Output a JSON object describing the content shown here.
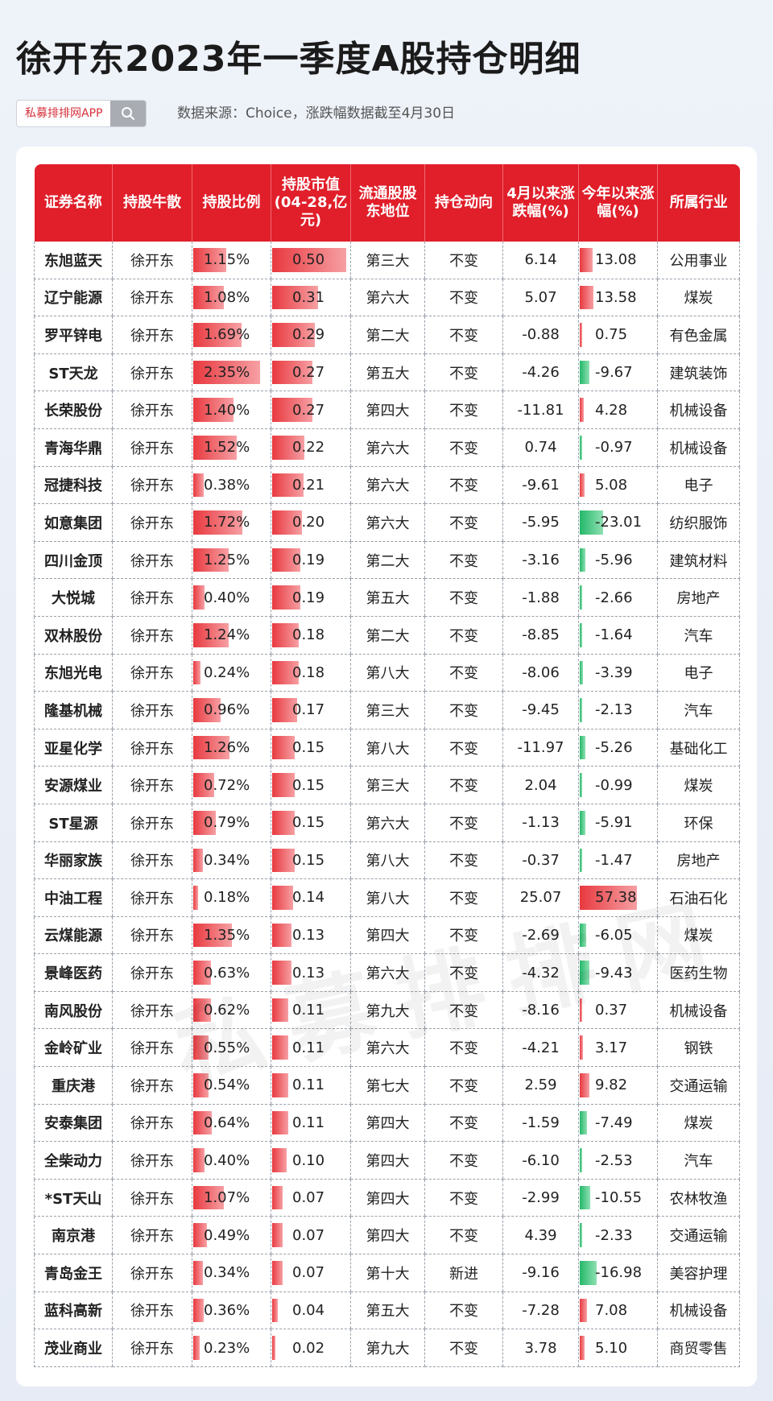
{
  "title": "徐开东2023年一季度A股持仓明细",
  "brand": {
    "name": "私募排排网APP",
    "search_icon": "search-icon"
  },
  "source_note": "数据来源：Choice，涨跌幅数据截至4月30日",
  "watermark": "私募排排网",
  "colors": {
    "header_red": "#e01f2a",
    "bar_red": "#e8393f",
    "bar_green": "#24b86a"
  },
  "table": {
    "headers": [
      "证券名称",
      "持股牛散",
      "持股比例",
      "持股市值(04-28,亿元)",
      "流通股股东地位",
      "持仓动向",
      "4月以来涨跌幅(%)",
      "今年以来涨幅(%)",
      "所属行业"
    ],
    "rows": [
      {
        "name": "东旭蓝天",
        "holder": "徐开东",
        "ratio": "1.15%",
        "ratio_v": 1.15,
        "mv": "0.50",
        "mv_v": 0.5,
        "rank": "第三大",
        "action": "不变",
        "apr": "6.14",
        "ytd": "13.08",
        "ytd_v": 13.08,
        "industry": "公用事业"
      },
      {
        "name": "辽宁能源",
        "holder": "徐开东",
        "ratio": "1.08%",
        "ratio_v": 1.08,
        "mv": "0.31",
        "mv_v": 0.31,
        "rank": "第六大",
        "action": "不变",
        "apr": "5.07",
        "ytd": "13.58",
        "ytd_v": 13.58,
        "industry": "煤炭"
      },
      {
        "name": "罗平锌电",
        "holder": "徐开东",
        "ratio": "1.69%",
        "ratio_v": 1.69,
        "mv": "0.29",
        "mv_v": 0.29,
        "rank": "第二大",
        "action": "不变",
        "apr": "-0.88",
        "ytd": "0.75",
        "ytd_v": 0.75,
        "industry": "有色金属"
      },
      {
        "name": "ST天龙",
        "holder": "徐开东",
        "ratio": "2.35%",
        "ratio_v": 2.35,
        "mv": "0.27",
        "mv_v": 0.27,
        "rank": "第五大",
        "action": "不变",
        "apr": "-4.26",
        "ytd": "-9.67",
        "ytd_v": -9.67,
        "industry": "建筑装饰"
      },
      {
        "name": "长荣股份",
        "holder": "徐开东",
        "ratio": "1.40%",
        "ratio_v": 1.4,
        "mv": "0.27",
        "mv_v": 0.27,
        "rank": "第四大",
        "action": "不变",
        "apr": "-11.81",
        "ytd": "4.28",
        "ytd_v": 4.28,
        "industry": "机械设备"
      },
      {
        "name": "青海华鼎",
        "holder": "徐开东",
        "ratio": "1.52%",
        "ratio_v": 1.52,
        "mv": "0.22",
        "mv_v": 0.22,
        "rank": "第六大",
        "action": "不变",
        "apr": "0.74",
        "ytd": "-0.97",
        "ytd_v": -0.97,
        "industry": "机械设备"
      },
      {
        "name": "冠捷科技",
        "holder": "徐开东",
        "ratio": "0.38%",
        "ratio_v": 0.38,
        "mv": "0.21",
        "mv_v": 0.21,
        "rank": "第六大",
        "action": "不变",
        "apr": "-9.61",
        "ytd": "5.08",
        "ytd_v": 5.08,
        "industry": "电子"
      },
      {
        "name": "如意集团",
        "holder": "徐开东",
        "ratio": "1.72%",
        "ratio_v": 1.72,
        "mv": "0.20",
        "mv_v": 0.2,
        "rank": "第六大",
        "action": "不变",
        "apr": "-5.95",
        "ytd": "-23.01",
        "ytd_v": -23.01,
        "industry": "纺织服饰"
      },
      {
        "name": "四川金顶",
        "holder": "徐开东",
        "ratio": "1.25%",
        "ratio_v": 1.25,
        "mv": "0.19",
        "mv_v": 0.19,
        "rank": "第二大",
        "action": "不变",
        "apr": "-3.16",
        "ytd": "-5.96",
        "ytd_v": -5.96,
        "industry": "建筑材料"
      },
      {
        "name": "大悦城",
        "holder": "徐开东",
        "ratio": "0.40%",
        "ratio_v": 0.4,
        "mv": "0.19",
        "mv_v": 0.19,
        "rank": "第五大",
        "action": "不变",
        "apr": "-1.88",
        "ytd": "-2.66",
        "ytd_v": -2.66,
        "industry": "房地产"
      },
      {
        "name": "双林股份",
        "holder": "徐开东",
        "ratio": "1.24%",
        "ratio_v": 1.24,
        "mv": "0.18",
        "mv_v": 0.18,
        "rank": "第二大",
        "action": "不变",
        "apr": "-8.85",
        "ytd": "-1.64",
        "ytd_v": -1.64,
        "industry": "汽车"
      },
      {
        "name": "东旭光电",
        "holder": "徐开东",
        "ratio": "0.24%",
        "ratio_v": 0.24,
        "mv": "0.18",
        "mv_v": 0.18,
        "rank": "第八大",
        "action": "不变",
        "apr": "-8.06",
        "ytd": "-3.39",
        "ytd_v": -3.39,
        "industry": "电子"
      },
      {
        "name": "隆基机械",
        "holder": "徐开东",
        "ratio": "0.96%",
        "ratio_v": 0.96,
        "mv": "0.17",
        "mv_v": 0.17,
        "rank": "第三大",
        "action": "不变",
        "apr": "-9.45",
        "ytd": "-2.13",
        "ytd_v": -2.13,
        "industry": "汽车"
      },
      {
        "name": "亚星化学",
        "holder": "徐开东",
        "ratio": "1.26%",
        "ratio_v": 1.26,
        "mv": "0.15",
        "mv_v": 0.15,
        "rank": "第八大",
        "action": "不变",
        "apr": "-11.97",
        "ytd": "-5.26",
        "ytd_v": -5.26,
        "industry": "基础化工"
      },
      {
        "name": "安源煤业",
        "holder": "徐开东",
        "ratio": "0.72%",
        "ratio_v": 0.72,
        "mv": "0.15",
        "mv_v": 0.15,
        "rank": "第三大",
        "action": "不变",
        "apr": "2.04",
        "ytd": "-0.99",
        "ytd_v": -0.99,
        "industry": "煤炭"
      },
      {
        "name": "ST星源",
        "holder": "徐开东",
        "ratio": "0.79%",
        "ratio_v": 0.79,
        "mv": "0.15",
        "mv_v": 0.15,
        "rank": "第六大",
        "action": "不变",
        "apr": "-1.13",
        "ytd": "-5.91",
        "ytd_v": -5.91,
        "industry": "环保"
      },
      {
        "name": "华丽家族",
        "holder": "徐开东",
        "ratio": "0.34%",
        "ratio_v": 0.34,
        "mv": "0.15",
        "mv_v": 0.15,
        "rank": "第八大",
        "action": "不变",
        "apr": "-0.37",
        "ytd": "-1.47",
        "ytd_v": -1.47,
        "industry": "房地产"
      },
      {
        "name": "中油工程",
        "holder": "徐开东",
        "ratio": "0.18%",
        "ratio_v": 0.18,
        "mv": "0.14",
        "mv_v": 0.14,
        "rank": "第八大",
        "action": "不变",
        "apr": "25.07",
        "ytd": "57.38",
        "ytd_v": 57.38,
        "industry": "石油石化"
      },
      {
        "name": "云煤能源",
        "holder": "徐开东",
        "ratio": "1.35%",
        "ratio_v": 1.35,
        "mv": "0.13",
        "mv_v": 0.13,
        "rank": "第四大",
        "action": "不变",
        "apr": "-2.69",
        "ytd": "-6.05",
        "ytd_v": -6.05,
        "industry": "煤炭"
      },
      {
        "name": "景峰医药",
        "holder": "徐开东",
        "ratio": "0.63%",
        "ratio_v": 0.63,
        "mv": "0.13",
        "mv_v": 0.13,
        "rank": "第六大",
        "action": "不变",
        "apr": "-4.32",
        "ytd": "-9.43",
        "ytd_v": -9.43,
        "industry": "医药生物"
      },
      {
        "name": "南风股份",
        "holder": "徐开东",
        "ratio": "0.62%",
        "ratio_v": 0.62,
        "mv": "0.11",
        "mv_v": 0.11,
        "rank": "第九大",
        "action": "不变",
        "apr": "-8.16",
        "ytd": "0.37",
        "ytd_v": 0.37,
        "industry": "机械设备"
      },
      {
        "name": "金岭矿业",
        "holder": "徐开东",
        "ratio": "0.55%",
        "ratio_v": 0.55,
        "mv": "0.11",
        "mv_v": 0.11,
        "rank": "第六大",
        "action": "不变",
        "apr": "-4.21",
        "ytd": "3.17",
        "ytd_v": 3.17,
        "industry": "钢铁"
      },
      {
        "name": "重庆港",
        "holder": "徐开东",
        "ratio": "0.54%",
        "ratio_v": 0.54,
        "mv": "0.11",
        "mv_v": 0.11,
        "rank": "第七大",
        "action": "不变",
        "apr": "2.59",
        "ytd": "9.82",
        "ytd_v": 9.82,
        "industry": "交通运输"
      },
      {
        "name": "安泰集团",
        "holder": "徐开东",
        "ratio": "0.64%",
        "ratio_v": 0.64,
        "mv": "0.11",
        "mv_v": 0.11,
        "rank": "第四大",
        "action": "不变",
        "apr": "-1.59",
        "ytd": "-7.49",
        "ytd_v": -7.49,
        "industry": "煤炭"
      },
      {
        "name": "全柴动力",
        "holder": "徐开东",
        "ratio": "0.40%",
        "ratio_v": 0.4,
        "mv": "0.10",
        "mv_v": 0.1,
        "rank": "第四大",
        "action": "不变",
        "apr": "-6.10",
        "ytd": "-2.53",
        "ytd_v": -2.53,
        "industry": "汽车"
      },
      {
        "name": "*ST天山",
        "holder": "徐开东",
        "ratio": "1.07%",
        "ratio_v": 1.07,
        "mv": "0.07",
        "mv_v": 0.07,
        "rank": "第四大",
        "action": "不变",
        "apr": "-2.99",
        "ytd": "-10.55",
        "ytd_v": -10.55,
        "industry": "农林牧渔"
      },
      {
        "name": "南京港",
        "holder": "徐开东",
        "ratio": "0.49%",
        "ratio_v": 0.49,
        "mv": "0.07",
        "mv_v": 0.07,
        "rank": "第四大",
        "action": "不变",
        "apr": "4.39",
        "ytd": "-2.33",
        "ytd_v": -2.33,
        "industry": "交通运输"
      },
      {
        "name": "青岛金王",
        "holder": "徐开东",
        "ratio": "0.34%",
        "ratio_v": 0.34,
        "mv": "0.07",
        "mv_v": 0.07,
        "rank": "第十大",
        "action": "新进",
        "apr": "-9.16",
        "ytd": "-16.98",
        "ytd_v": -16.98,
        "industry": "美容护理"
      },
      {
        "name": "蓝科高新",
        "holder": "徐开东",
        "ratio": "0.36%",
        "ratio_v": 0.36,
        "mv": "0.04",
        "mv_v": 0.04,
        "rank": "第五大",
        "action": "不变",
        "apr": "-7.28",
        "ytd": "7.08",
        "ytd_v": 7.08,
        "industry": "机械设备"
      },
      {
        "name": "茂业商业",
        "holder": "徐开东",
        "ratio": "0.23%",
        "ratio_v": 0.23,
        "mv": "0.02",
        "mv_v": 0.02,
        "rank": "第九大",
        "action": "不变",
        "apr": "3.78",
        "ytd": "5.10",
        "ytd_v": 5.1,
        "industry": "商贸零售"
      }
    ]
  }
}
